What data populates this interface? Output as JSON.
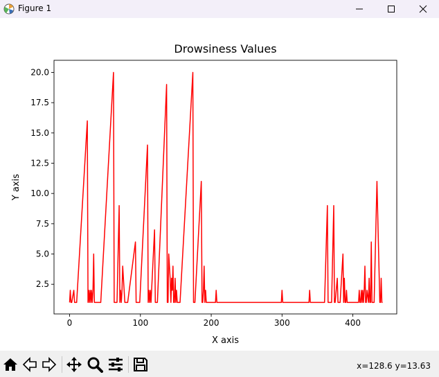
{
  "window": {
    "title": "Figure 1",
    "app_icon": "matplotlib-figure-icon",
    "controls": [
      "minimize-icon",
      "maximize-icon",
      "close-icon"
    ]
  },
  "toolbar": {
    "tools": [
      "home-icon",
      "back-arrow-icon",
      "forward-arrow-icon",
      "pan-move-icon",
      "zoom-magnifier-icon",
      "subplots-sliders-icon",
      "save-floppy-icon"
    ],
    "coords": "x=128.6 y=13.63"
  },
  "chart_data": {
    "type": "line",
    "title": "Drowsiness Values",
    "xlabel": "X axis",
    "ylabel": "Y axis",
    "xlim": [
      -22,
      462
    ],
    "ylim": [
      0.05,
      21.0
    ],
    "xticks": [
      0,
      100,
      200,
      300,
      400
    ],
    "yticks": [
      2.5,
      5.0,
      7.5,
      10.0,
      12.5,
      15.0,
      17.5,
      20.0
    ],
    "xtick_labels": [
      "0",
      "100",
      "200",
      "300",
      "400"
    ],
    "ytick_labels": [
      "2.5",
      "5.0",
      "7.5",
      "10.0",
      "12.5",
      "15.0",
      "17.5",
      "20.0"
    ],
    "grid": false,
    "line_color": "#ff0000",
    "series": [
      {
        "x": [
          0,
          1,
          2,
          3,
          6,
          7,
          8,
          9,
          10,
          25,
          26,
          27,
          28,
          29,
          30,
          31,
          32,
          33,
          34,
          35,
          36,
          37,
          38,
          39,
          40,
          44,
          62,
          63,
          64,
          65,
          66,
          67,
          70,
          71,
          72,
          73,
          74,
          75,
          78,
          79,
          80,
          81,
          82,
          93,
          94,
          97,
          98,
          99,
          110,
          111,
          112,
          113,
          114,
          115,
          120,
          121,
          122,
          123,
          124,
          137,
          138,
          139,
          140,
          142,
          143,
          144,
          145,
          146,
          147,
          148,
          149,
          150,
          151,
          152,
          153,
          154,
          155,
          156,
          174,
          175,
          176,
          177,
          186,
          187,
          188,
          189,
          190,
          191,
          192,
          193,
          194,
          195,
          206,
          207,
          208,
          299,
          300,
          301,
          338,
          339,
          340,
          360,
          364,
          365,
          366,
          370,
          373,
          374,
          375,
          378,
          379,
          380,
          381,
          382,
          386,
          387,
          388,
          389,
          390,
          391,
          392,
          400,
          408,
          409,
          410,
          411,
          412,
          413,
          414,
          415,
          416,
          417,
          418,
          419,
          420,
          422,
          423,
          424,
          425,
          426,
          427,
          428,
          430,
          434,
          438,
          439,
          440,
          441,
          442
        ],
        "y": [
          1,
          2,
          1,
          1,
          2,
          1,
          1,
          1,
          1,
          16,
          1,
          2,
          1,
          2,
          1,
          2,
          1,
          2,
          5,
          1,
          1,
          1,
          1,
          1,
          1,
          1,
          20,
          1,
          1,
          1,
          1,
          1,
          9,
          1,
          2,
          1,
          2,
          4,
          1,
          1,
          1,
          1,
          1,
          6,
          1,
          1,
          1,
          1,
          14,
          1,
          2,
          1,
          2,
          1,
          7,
          1,
          1,
          1,
          1,
          19,
          1,
          1,
          5,
          3,
          1,
          3,
          2,
          4,
          1,
          1,
          3,
          1,
          2,
          1,
          1,
          1,
          1,
          1,
          20,
          1,
          1,
          1,
          11,
          1,
          1,
          2,
          4,
          1,
          2,
          1,
          1,
          1,
          1,
          2,
          1,
          1,
          2,
          1,
          1,
          2,
          1,
          1,
          9,
          1,
          1,
          1,
          9,
          1,
          1,
          3,
          1,
          1,
          1,
          1,
          5,
          1,
          3,
          1,
          1,
          2,
          1,
          1,
          1,
          2,
          1,
          1,
          2,
          1,
          2,
          1,
          2,
          4,
          1,
          1,
          2,
          1,
          3,
          1,
          1,
          6,
          1,
          1,
          1,
          11,
          1,
          1,
          3,
          1,
          1
        ]
      }
    ]
  }
}
